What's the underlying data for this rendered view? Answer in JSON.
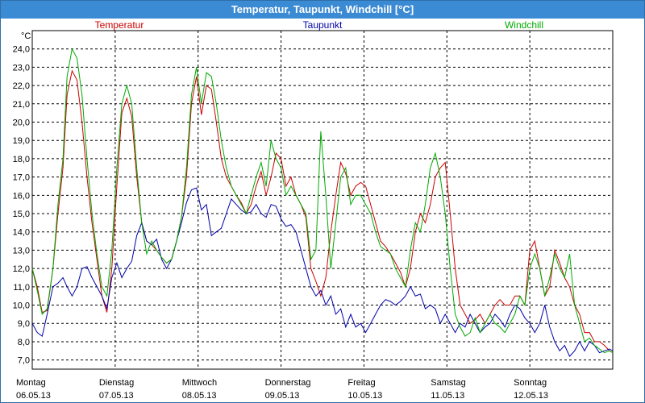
{
  "window": {
    "title": "Temperatur, Taupunkt, Windchill [°C]"
  },
  "chart_data": {
    "type": "line",
    "title": "Temperatur, Taupunkt, Windchill [°C]",
    "ylabel": "°C",
    "ylim": [
      6.5,
      25.0
    ],
    "yticks": [
      7.0,
      8.0,
      9.0,
      10.0,
      11.0,
      12.0,
      13.0,
      14.0,
      15.0,
      16.0,
      17.0,
      18.0,
      19.0,
      20.0,
      21.0,
      22.0,
      23.0,
      24.0
    ],
    "ytick_labels": [
      "7,0",
      "8,0",
      "9,0",
      "10,0",
      "11,0",
      "12,0",
      "13,0",
      "14,0",
      "15,0",
      "16,0",
      "17,0",
      "18,0",
      "19,0",
      "20,0",
      "21,0",
      "22,0",
      "23,0",
      "24,0"
    ],
    "xlim": [
      0,
      7
    ],
    "days": [
      {
        "weekday": "Montag",
        "date": "06.05.13"
      },
      {
        "weekday": "Dienstag",
        "date": "07.05.13"
      },
      {
        "weekday": "Mittwoch",
        "date": "08.05.13"
      },
      {
        "weekday": "Donnerstag",
        "date": "09.05.13"
      },
      {
        "weekday": "Freitag",
        "date": "10.05.13"
      },
      {
        "weekday": "Samstag",
        "date": "11.05.13"
      },
      {
        "weekday": "Sonntag",
        "date": "12.05.13"
      }
    ],
    "grid": true,
    "legend": "top",
    "series": [
      {
        "name": "Temperatur",
        "color": "#cc0000",
        "x": [
          0,
          0.06,
          0.12,
          0.18,
          0.25,
          0.31,
          0.37,
          0.42,
          0.48,
          0.54,
          0.6,
          0.66,
          0.72,
          0.78,
          0.84,
          0.9,
          0.96,
          1.02,
          1.08,
          1.14,
          1.2,
          1.26,
          1.32,
          1.38,
          1.44,
          1.5,
          1.56,
          1.62,
          1.68,
          1.74,
          1.8,
          1.86,
          1.92,
          1.98,
          2.04,
          2.1,
          2.16,
          2.22,
          2.28,
          2.34,
          2.4,
          2.46,
          2.52,
          2.58,
          2.64,
          2.7,
          2.76,
          2.82,
          2.88,
          2.94,
          3.0,
          3.06,
          3.12,
          3.18,
          3.24,
          3.3,
          3.36,
          3.42,
          3.48,
          3.54,
          3.6,
          3.66,
          3.72,
          3.78,
          3.84,
          3.9,
          3.96,
          4.02,
          4.08,
          4.14,
          4.2,
          4.26,
          4.32,
          4.38,
          4.44,
          4.5,
          4.56,
          4.62,
          4.68,
          4.74,
          4.8,
          4.86,
          4.92,
          4.98,
          5.04,
          5.1,
          5.16,
          5.22,
          5.28,
          5.34,
          5.4,
          5.46,
          5.52,
          5.58,
          5.64,
          5.7,
          5.76,
          5.82,
          5.88,
          5.94,
          6.0,
          6.06,
          6.12,
          6.18,
          6.24,
          6.3,
          6.36,
          6.42,
          6.48,
          6.54,
          6.6,
          6.66,
          6.72,
          6.78,
          6.84,
          6.9,
          6.96,
          7.0
        ],
        "values": [
          12.0,
          11.0,
          9.6,
          9.7,
          12.0,
          15.0,
          17.5,
          21.5,
          22.8,
          22.3,
          20.0,
          17.0,
          14.5,
          12.5,
          10.5,
          9.6,
          12.0,
          16.5,
          20.5,
          21.3,
          20.3,
          17.0,
          14.5,
          13.5,
          13.3,
          13.0,
          12.6,
          12.3,
          12.5,
          13.5,
          14.8,
          17.0,
          21.0,
          22.5,
          20.4,
          22.0,
          21.8,
          20.0,
          18.0,
          17.0,
          16.5,
          16.0,
          15.6,
          15.0,
          15.5,
          16.5,
          17.3,
          16.0,
          17.0,
          18.3,
          18.0,
          16.5,
          17.0,
          16.0,
          15.5,
          14.8,
          12.0,
          11.3,
          10.5,
          11.5,
          14.0,
          16.0,
          17.8,
          17.2,
          16.0,
          16.5,
          16.7,
          16.5,
          15.5,
          14.5,
          13.5,
          13.2,
          12.8,
          12.3,
          11.8,
          11.0,
          12.0,
          14.0,
          15.0,
          14.5,
          15.5,
          17.0,
          17.5,
          17.8,
          15.0,
          12.0,
          10.0,
          9.5,
          9.0,
          9.2,
          9.5,
          9.0,
          9.5,
          10.0,
          10.3,
          10.0,
          10.0,
          10.5,
          10.5,
          10.0,
          13.0,
          13.5,
          12.0,
          10.5,
          11.0,
          13.0,
          12.3,
          11.5,
          11.0,
          10.0,
          9.5,
          8.5,
          8.5,
          8.0,
          8.0,
          7.8,
          7.5,
          7.4
        ]
      },
      {
        "name": "Taupunkt",
        "color": "#0000aa",
        "x": [
          0,
          0.06,
          0.12,
          0.18,
          0.25,
          0.31,
          0.37,
          0.42,
          0.48,
          0.54,
          0.6,
          0.66,
          0.72,
          0.78,
          0.84,
          0.9,
          0.96,
          1.02,
          1.08,
          1.14,
          1.2,
          1.26,
          1.32,
          1.38,
          1.44,
          1.5,
          1.56,
          1.62,
          1.68,
          1.74,
          1.8,
          1.86,
          1.92,
          1.98,
          2.04,
          2.1,
          2.16,
          2.22,
          2.28,
          2.34,
          2.4,
          2.46,
          2.52,
          2.58,
          2.64,
          2.7,
          2.76,
          2.82,
          2.88,
          2.94,
          3.0,
          3.06,
          3.12,
          3.18,
          3.24,
          3.3,
          3.36,
          3.42,
          3.48,
          3.54,
          3.6,
          3.66,
          3.72,
          3.78,
          3.84,
          3.9,
          3.96,
          4.02,
          4.08,
          4.14,
          4.2,
          4.26,
          4.32,
          4.38,
          4.44,
          4.5,
          4.56,
          4.62,
          4.68,
          4.74,
          4.8,
          4.86,
          4.92,
          4.98,
          5.04,
          5.1,
          5.16,
          5.22,
          5.28,
          5.34,
          5.4,
          5.46,
          5.52,
          5.58,
          5.64,
          5.7,
          5.76,
          5.82,
          5.88,
          5.94,
          6.0,
          6.06,
          6.12,
          6.18,
          6.24,
          6.3,
          6.36,
          6.42,
          6.48,
          6.54,
          6.6,
          6.66,
          6.72,
          6.78,
          6.84,
          6.9,
          6.96,
          7.0
        ],
        "values": [
          9.0,
          8.5,
          8.3,
          9.5,
          11.0,
          11.2,
          11.5,
          11.0,
          10.5,
          11.0,
          12.0,
          12.1,
          11.5,
          11.0,
          10.5,
          9.8,
          11.5,
          12.3,
          11.5,
          12.0,
          12.4,
          13.8,
          14.5,
          13.5,
          13.3,
          13.6,
          12.5,
          12.0,
          12.5,
          13.5,
          14.5,
          15.6,
          16.3,
          16.4,
          15.2,
          15.5,
          13.8,
          14.0,
          14.2,
          15.0,
          15.8,
          15.5,
          15.2,
          15.0,
          15.1,
          15.5,
          15.0,
          14.8,
          15.5,
          15.4,
          14.7,
          14.3,
          14.4,
          14.0,
          13.0,
          12.0,
          11.0,
          10.5,
          10.8,
          10.0,
          10.5,
          9.5,
          9.8,
          8.8,
          9.5,
          8.8,
          9.0,
          8.5,
          9.0,
          9.5,
          10.0,
          10.3,
          10.2,
          10.0,
          10.2,
          10.5,
          11.0,
          10.5,
          10.6,
          9.8,
          10.0,
          9.8,
          9.0,
          9.5,
          9.0,
          8.5,
          9.0,
          8.8,
          9.5,
          9.0,
          8.5,
          8.8,
          9.0,
          9.5,
          9.2,
          8.8,
          9.5,
          10.0,
          9.8,
          9.3,
          9.0,
          8.5,
          9.0,
          10.0,
          8.8,
          8.0,
          7.5,
          7.8,
          7.2,
          7.5,
          8.0,
          7.5,
          8.0,
          7.8,
          7.4,
          7.5,
          7.6,
          7.5
        ]
      },
      {
        "name": "Windchill",
        "color": "#00aa00",
        "x": [
          0,
          0.06,
          0.12,
          0.18,
          0.25,
          0.31,
          0.37,
          0.42,
          0.48,
          0.54,
          0.6,
          0.66,
          0.72,
          0.78,
          0.84,
          0.9,
          0.96,
          1.02,
          1.08,
          1.14,
          1.2,
          1.26,
          1.32,
          1.38,
          1.44,
          1.5,
          1.56,
          1.62,
          1.68,
          1.74,
          1.8,
          1.86,
          1.92,
          1.98,
          2.04,
          2.1,
          2.16,
          2.22,
          2.28,
          2.34,
          2.4,
          2.46,
          2.52,
          2.58,
          2.64,
          2.7,
          2.76,
          2.82,
          2.88,
          2.94,
          3.0,
          3.06,
          3.12,
          3.18,
          3.24,
          3.3,
          3.36,
          3.42,
          3.48,
          3.54,
          3.6,
          3.66,
          3.72,
          3.78,
          3.84,
          3.9,
          3.96,
          4.02,
          4.08,
          4.14,
          4.2,
          4.26,
          4.32,
          4.38,
          4.44,
          4.5,
          4.56,
          4.62,
          4.68,
          4.74,
          4.8,
          4.86,
          4.92,
          4.98,
          5.04,
          5.1,
          5.16,
          5.22,
          5.28,
          5.34,
          5.4,
          5.46,
          5.52,
          5.58,
          5.64,
          5.7,
          5.76,
          5.82,
          5.88,
          5.94,
          6.0,
          6.06,
          6.12,
          6.18,
          6.24,
          6.3,
          6.36,
          6.42,
          6.48,
          6.54,
          6.6,
          6.66,
          6.72,
          6.78,
          6.84,
          6.9,
          6.96,
          7.0
        ],
        "values": [
          12.0,
          10.8,
          9.5,
          9.8,
          12.0,
          15.5,
          18.0,
          22.5,
          24.0,
          23.5,
          21.5,
          18.0,
          15.0,
          12.8,
          11.0,
          10.5,
          13.0,
          17.5,
          21.0,
          22.0,
          21.0,
          17.5,
          14.5,
          12.8,
          13.5,
          13.0,
          12.6,
          12.3,
          12.5,
          13.5,
          14.8,
          17.5,
          21.5,
          23.0,
          21.0,
          22.7,
          22.5,
          21.0,
          19.0,
          17.5,
          16.5,
          16.0,
          15.5,
          15.0,
          16.0,
          17.0,
          17.8,
          16.5,
          19.0,
          18.0,
          17.5,
          16.0,
          16.5,
          16.0,
          15.5,
          15.0,
          12.5,
          13.0,
          19.5,
          16.0,
          12.0,
          14.5,
          17.0,
          17.5,
          15.5,
          16.0,
          16.0,
          15.5,
          15.0,
          14.0,
          13.2,
          13.0,
          12.8,
          12.0,
          11.5,
          11.0,
          13.0,
          14.5,
          14.0,
          15.5,
          17.5,
          18.3,
          17.0,
          15.0,
          12.0,
          9.5,
          8.8,
          8.3,
          8.5,
          9.3,
          8.5,
          9.0,
          9.5,
          9.0,
          8.8,
          8.5,
          9.0,
          9.5,
          10.5,
          10.0,
          12.0,
          12.8,
          12.0,
          10.5,
          11.5,
          12.8,
          12.0,
          11.5,
          12.8,
          10.0,
          9.0,
          8.0,
          8.2,
          7.8,
          7.6,
          7.4,
          7.5,
          7.4
        ]
      }
    ]
  }
}
